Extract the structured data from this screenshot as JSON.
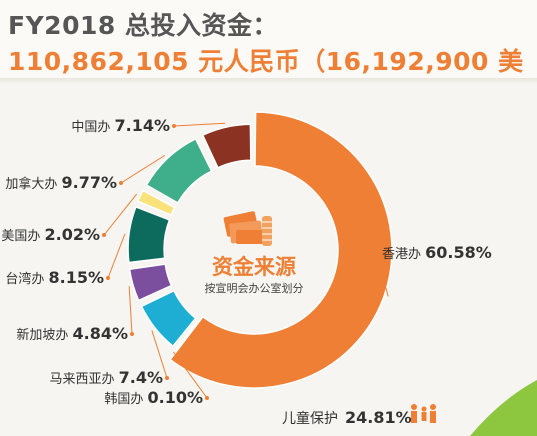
{
  "header": {
    "line1": "FY2018 总投入资金：",
    "line2": "110,862,105 元人民币（16,192,900 美"
  },
  "colors": {
    "orange": "#ee7f34",
    "dark_red": "#8b3223",
    "green_mid": "#3fae8a",
    "yellow": "#f7e27c",
    "teal_dark": "#0d6b5e",
    "purple": "#7c4f9e",
    "cyan": "#1eaed4",
    "green_lime": "#8dc63f"
  },
  "chart_data": {
    "type": "pie",
    "title": "资金来源",
    "subtitle": "按宣明会办公室划分",
    "slices": [
      {
        "label": "香港办",
        "value": 60.58,
        "display": "60.58%",
        "color": "#ee7f34"
      },
      {
        "label": "韩国办",
        "value": 0.1,
        "display": "0.10%",
        "color": "#dddddd"
      },
      {
        "label": "马来西亚办",
        "value": 7.4,
        "display": "7.4%",
        "color": "#1eaed4"
      },
      {
        "label": "新加坡办",
        "value": 4.84,
        "display": "4.84%",
        "color": "#7c4f9e"
      },
      {
        "label": "台湾办",
        "value": 8.15,
        "display": "8.15%",
        "color": "#0d6b5e"
      },
      {
        "label": "美国办",
        "value": 2.02,
        "display": "2.02%",
        "color": "#f7e27c"
      },
      {
        "label": "加拿大办",
        "value": 9.77,
        "display": "9.77%",
        "color": "#3fae8a"
      },
      {
        "label": "中国办",
        "value": 7.14,
        "display": "7.14%",
        "color": "#8b3223"
      }
    ]
  },
  "footer": {
    "category_label": "儿童保护",
    "category_value": "24.81%",
    "icon": "family-icon"
  }
}
